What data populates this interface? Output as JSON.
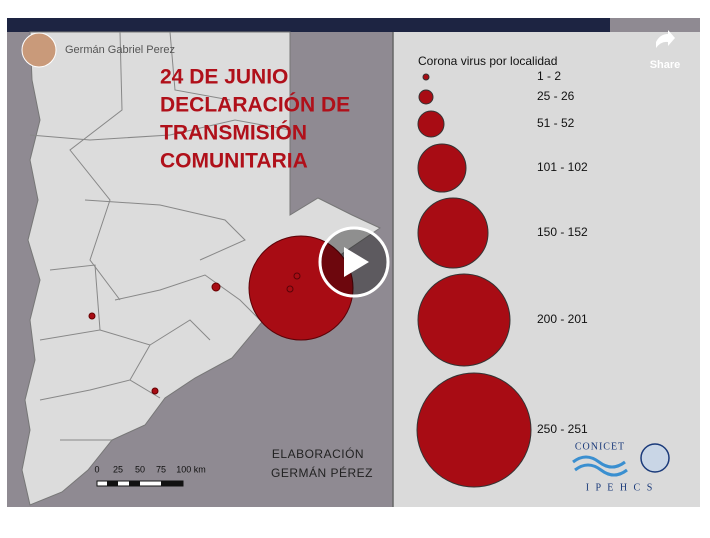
{
  "header": {
    "channel": "Germán Gabriel Perez",
    "share": "Share"
  },
  "map": {
    "title_lines": [
      "24 DE JUNIO",
      "DECLARACIÓN DE",
      "TRANSMISIÓN",
      "COMUNITARIA"
    ],
    "scale_labels": [
      "0",
      "25",
      "50",
      "75",
      "100 km"
    ],
    "credit": [
      "ELABORACIÓN",
      "GERMÁN PÉREZ"
    ]
  },
  "legend": {
    "title": "Corona virus por localidad",
    "labels": [
      "1 - 2",
      "25 - 26",
      "51 - 52",
      "101 - 102",
      "150 - 152",
      "200 - 201",
      "250 - 251"
    ]
  },
  "logos": {
    "conicet": "CONICET",
    "ipehcs": "I P E H C S"
  }
}
